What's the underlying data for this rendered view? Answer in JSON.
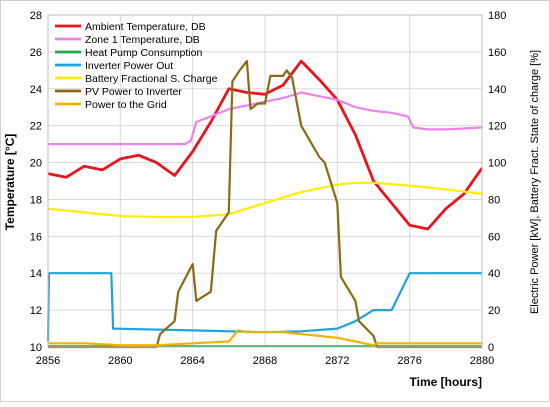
{
  "chart_data": {
    "type": "line",
    "title": "",
    "xlabel": "Time [hours]",
    "ylabel_left": "Temperature [°C]",
    "ylabel_right": "Electric Power [kW], Battery Fract. State of charge [%]",
    "xlim": [
      2856,
      2880
    ],
    "ylim_left": [
      10,
      28
    ],
    "ylim_right": [
      0,
      180
    ],
    "x_ticks": [
      "2856",
      "2860",
      "2864",
      "2868",
      "2872",
      "2876",
      "2880"
    ],
    "y_ticks_left": [
      "10",
      "12",
      "14",
      "16",
      "18",
      "20",
      "22",
      "24",
      "26",
      "28"
    ],
    "y_ticks_right": [
      "0",
      "20",
      "40",
      "60",
      "80",
      "100",
      "120",
      "140",
      "160",
      "180"
    ],
    "grid": true,
    "legend_position": "top-left",
    "series": [
      {
        "name": "Ambient Temperature, DB",
        "color": "#e8141e",
        "axis": "left",
        "x": [
          2856,
          2857,
          2858,
          2859,
          2860,
          2861,
          2862,
          2863,
          2864,
          2865,
          2866,
          2867,
          2868,
          2869,
          2870,
          2871,
          2872,
          2873,
          2874,
          2875,
          2876,
          2877,
          2878,
          2879,
          2880
        ],
        "y": [
          19.4,
          19.2,
          19.8,
          19.6,
          20.2,
          20.4,
          20.0,
          19.3,
          20.6,
          22.2,
          24.0,
          23.8,
          23.7,
          24.2,
          25.5,
          24.5,
          23.4,
          21.5,
          19.0,
          17.8,
          16.6,
          16.4,
          17.5,
          18.3,
          19.7
        ]
      },
      {
        "name": "Zone 1 Temperature, DB",
        "color": "#ee82ee",
        "axis": "left",
        "x": [
          2856,
          2858,
          2860,
          2862,
          2863.6,
          2863.9,
          2864.2,
          2865,
          2866,
          2867,
          2868,
          2869,
          2870,
          2871,
          2872,
          2873,
          2874,
          2875,
          2875.9,
          2876.2,
          2877,
          2878,
          2880
        ],
        "y": [
          21.0,
          21.0,
          21.0,
          21.0,
          21.0,
          21.2,
          22.2,
          22.5,
          22.9,
          23.1,
          23.3,
          23.5,
          23.8,
          23.6,
          23.4,
          23.0,
          22.8,
          22.7,
          22.5,
          21.9,
          21.8,
          21.8,
          21.9
        ]
      },
      {
        "name": "Heat Pump Consumption",
        "color": "#22a84a",
        "axis": "right",
        "x": [
          2856,
          2880
        ],
        "y": [
          0.3,
          0.3
        ]
      },
      {
        "name": "Inverter Power Out",
        "color": "#1fa3d8",
        "axis": "right",
        "x": [
          2856,
          2856.05,
          2859.5,
          2859.6,
          2864,
          2868,
          2870,
          2872,
          2873,
          2874,
          2875,
          2876,
          2880
        ],
        "y": [
          3,
          40,
          40,
          10,
          9,
          8,
          8.5,
          10,
          14,
          20,
          20,
          40,
          40
        ]
      },
      {
        "name": "Battery Fractional S. Charge",
        "color": "#ffee00",
        "axis": "right",
        "x": [
          2856,
          2858,
          2860,
          2862,
          2864,
          2866,
          2868,
          2870,
          2872,
          2873,
          2874,
          2876,
          2878,
          2880
        ],
        "y": [
          75,
          73,
          71,
          70.5,
          70.5,
          72,
          78,
          84,
          88,
          89,
          89,
          87.5,
          85.5,
          83
        ]
      },
      {
        "name": "PV Power to Inverter",
        "color": "#8b6a14",
        "axis": "right",
        "x": [
          2856,
          2862,
          2862.2,
          2863,
          2863.2,
          2864,
          2864.2,
          2865,
          2865.3,
          2866,
          2866.2,
          2866.6,
          2867,
          2867.2,
          2867.6,
          2868,
          2868.3,
          2868.6,
          2869,
          2869.2,
          2869.5,
          2870,
          2870.3,
          2871,
          2871.3,
          2872,
          2872.2,
          2873,
          2873.2,
          2874,
          2874.2,
          2880
        ],
        "y": [
          0,
          0,
          7,
          14,
          30,
          45,
          25,
          30,
          63,
          73,
          144,
          150,
          155,
          129,
          132,
          132,
          147,
          147,
          147,
          150,
          146,
          120,
          115,
          103,
          100,
          78,
          38,
          25,
          14,
          6,
          0,
          0
        ]
      },
      {
        "name": "Power to the Grid",
        "color": "#f0b400",
        "axis": "right",
        "x": [
          2856,
          2858,
          2860,
          2862,
          2864,
          2866,
          2866.5,
          2867,
          2868,
          2869,
          2870,
          2871,
          2872,
          2873,
          2874,
          2874.2,
          2876,
          2880
        ],
        "y": [
          2,
          2,
          1,
          1,
          2,
          3,
          9,
          8,
          8,
          8,
          7,
          6,
          5,
          3,
          1,
          2,
          2,
          2
        ]
      }
    ]
  }
}
